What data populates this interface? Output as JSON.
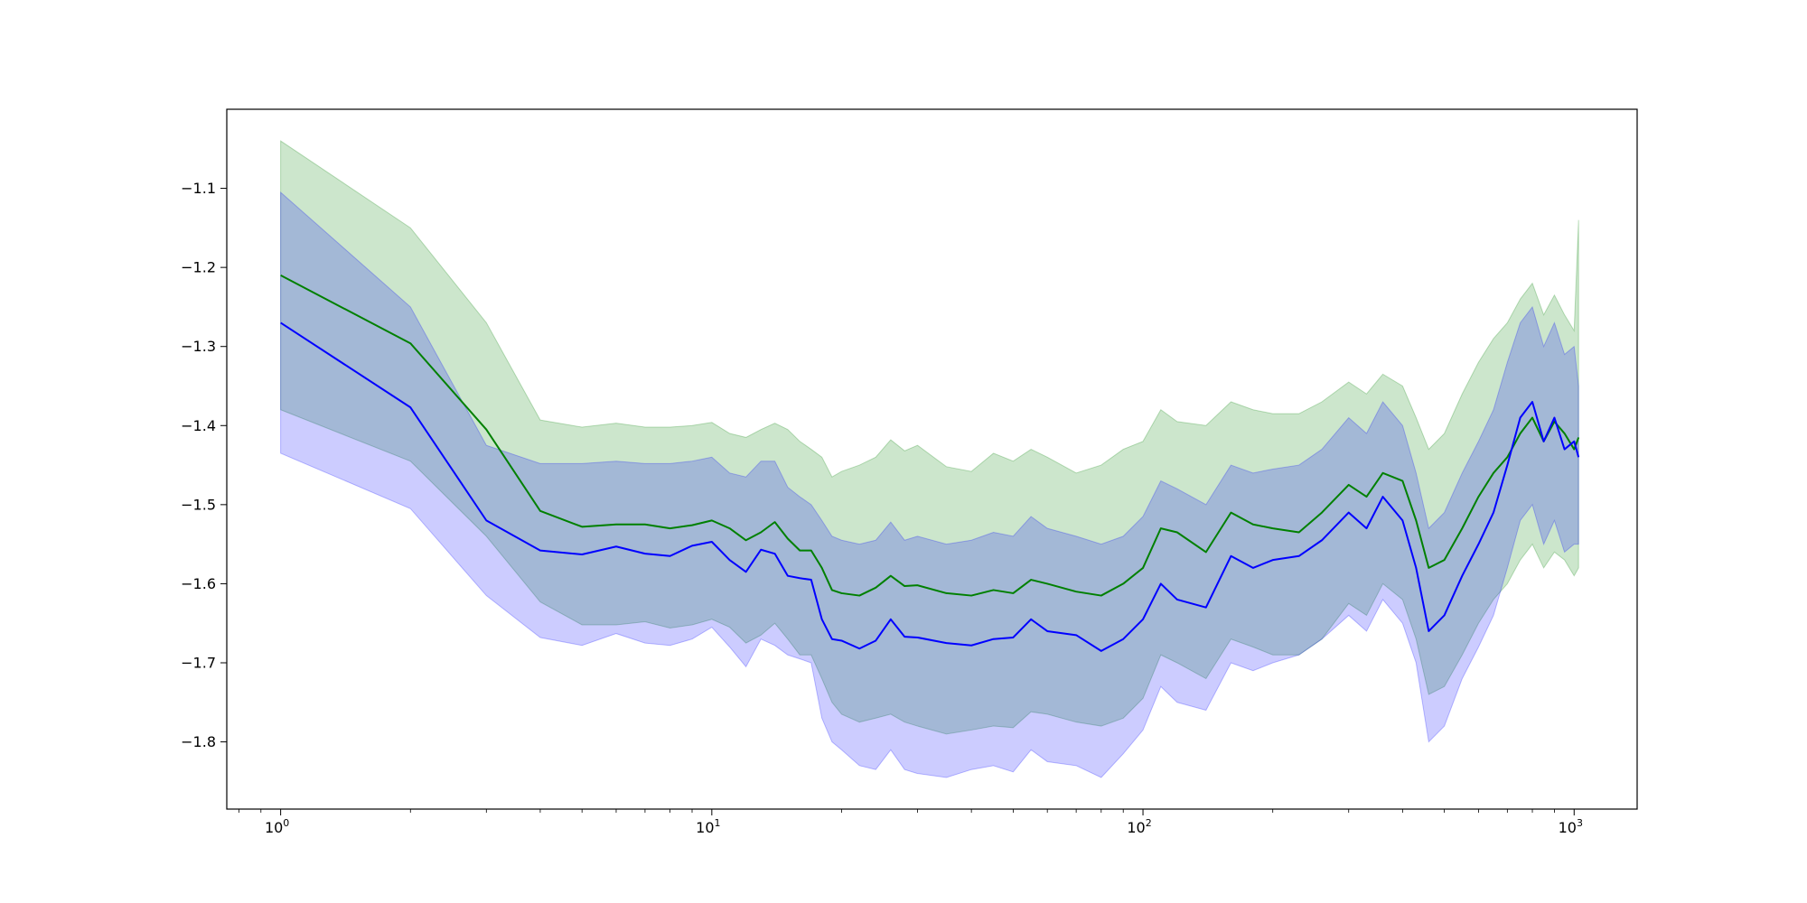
{
  "chart_data": {
    "type": "line",
    "title": "",
    "xlabel": "",
    "ylabel": "",
    "x_scale": "log",
    "xlim": [
      0.75,
      1400
    ],
    "ylim": [
      -1.885,
      -1.0
    ],
    "x_ticks": [
      {
        "value": 1,
        "base": "10",
        "exp": "0"
      },
      {
        "value": 10,
        "base": "10",
        "exp": "1"
      },
      {
        "value": 100,
        "base": "10",
        "exp": "2"
      },
      {
        "value": 1000,
        "base": "10",
        "exp": "3"
      }
    ],
    "y_ticks": [
      {
        "value": -1.1,
        "label": "−1.1"
      },
      {
        "value": -1.2,
        "label": "−1.2"
      },
      {
        "value": -1.3,
        "label": "−1.3"
      },
      {
        "value": -1.4,
        "label": "−1.4"
      },
      {
        "value": -1.5,
        "label": "−1.5"
      },
      {
        "value": -1.6,
        "label": "−1.6"
      },
      {
        "value": -1.7,
        "label": "−1.7"
      },
      {
        "value": -1.8,
        "label": "−1.8"
      }
    ],
    "grid": false,
    "legend": "none",
    "series": [
      {
        "color": "#008000",
        "band_color": "#008000",
        "band_opacity": 0.2,
        "x": [
          1,
          2,
          3,
          4,
          5,
          6,
          7,
          8,
          9,
          10,
          11,
          12,
          13,
          14,
          15,
          16,
          17,
          18,
          19,
          20,
          22,
          24,
          26,
          28,
          30,
          35,
          40,
          45,
          50,
          55,
          60,
          70,
          80,
          90,
          100,
          110,
          120,
          140,
          160,
          180,
          200,
          230,
          260,
          300,
          330,
          360,
          400,
          430,
          460,
          500,
          550,
          600,
          650,
          700,
          750,
          800,
          850,
          900,
          950,
          1000,
          1024
        ],
        "mean": [
          -1.21,
          -1.296,
          -1.405,
          -1.508,
          -1.528,
          -1.525,
          -1.525,
          -1.53,
          -1.526,
          -1.52,
          -1.53,
          -1.545,
          -1.535,
          -1.522,
          -1.543,
          -1.558,
          -1.558,
          -1.58,
          -1.608,
          -1.612,
          -1.615,
          -1.605,
          -1.59,
          -1.603,
          -1.602,
          -1.612,
          -1.615,
          -1.608,
          -1.612,
          -1.595,
          -1.6,
          -1.61,
          -1.615,
          -1.6,
          -1.58,
          -1.53,
          -1.535,
          -1.56,
          -1.51,
          -1.525,
          -1.53,
          -1.535,
          -1.51,
          -1.475,
          -1.49,
          -1.46,
          -1.47,
          -1.52,
          -1.58,
          -1.57,
          -1.53,
          -1.49,
          -1.46,
          -1.44,
          -1.41,
          -1.39,
          -1.42,
          -1.395,
          -1.41,
          -1.43,
          -1.415
        ],
        "upper": [
          -1.04,
          -1.15,
          -1.27,
          -1.393,
          -1.402,
          -1.397,
          -1.402,
          -1.402,
          -1.4,
          -1.396,
          -1.41,
          -1.415,
          -1.405,
          -1.397,
          -1.405,
          -1.42,
          -1.43,
          -1.44,
          -1.465,
          -1.458,
          -1.45,
          -1.44,
          -1.418,
          -1.432,
          -1.425,
          -1.452,
          -1.458,
          -1.435,
          -1.445,
          -1.43,
          -1.44,
          -1.46,
          -1.45,
          -1.43,
          -1.42,
          -1.38,
          -1.395,
          -1.4,
          -1.37,
          -1.38,
          -1.385,
          -1.385,
          -1.37,
          -1.345,
          -1.36,
          -1.335,
          -1.35,
          -1.39,
          -1.43,
          -1.41,
          -1.36,
          -1.32,
          -1.29,
          -1.27,
          -1.24,
          -1.22,
          -1.26,
          -1.235,
          -1.26,
          -1.28,
          -1.14
        ],
        "lower": [
          -1.38,
          -1.445,
          -1.54,
          -1.623,
          -1.652,
          -1.652,
          -1.648,
          -1.656,
          -1.652,
          -1.645,
          -1.655,
          -1.675,
          -1.665,
          -1.65,
          -1.67,
          -1.69,
          -1.69,
          -1.72,
          -1.75,
          -1.765,
          -1.775,
          -1.77,
          -1.765,
          -1.775,
          -1.78,
          -1.79,
          -1.785,
          -1.78,
          -1.782,
          -1.762,
          -1.765,
          -1.775,
          -1.78,
          -1.77,
          -1.745,
          -1.69,
          -1.7,
          -1.72,
          -1.67,
          -1.68,
          -1.69,
          -1.69,
          -1.67,
          -1.625,
          -1.64,
          -1.6,
          -1.62,
          -1.67,
          -1.74,
          -1.73,
          -1.69,
          -1.65,
          -1.62,
          -1.6,
          -1.57,
          -1.55,
          -1.58,
          -1.56,
          -1.57,
          -1.59,
          -1.58
        ]
      },
      {
        "color": "#0000ff",
        "band_color": "#0000ff",
        "band_opacity": 0.2,
        "x": [
          1,
          2,
          3,
          4,
          5,
          6,
          7,
          8,
          9,
          10,
          11,
          12,
          13,
          14,
          15,
          16,
          17,
          18,
          19,
          20,
          22,
          24,
          26,
          28,
          30,
          35,
          40,
          45,
          50,
          55,
          60,
          70,
          80,
          90,
          100,
          110,
          120,
          140,
          160,
          180,
          200,
          230,
          260,
          300,
          330,
          360,
          400,
          430,
          460,
          500,
          550,
          600,
          650,
          700,
          750,
          800,
          850,
          900,
          950,
          1000,
          1024
        ],
        "mean": [
          -1.27,
          -1.377,
          -1.52,
          -1.558,
          -1.563,
          -1.553,
          -1.562,
          -1.565,
          -1.552,
          -1.547,
          -1.57,
          -1.585,
          -1.557,
          -1.562,
          -1.59,
          -1.593,
          -1.595,
          -1.645,
          -1.67,
          -1.672,
          -1.682,
          -1.672,
          -1.645,
          -1.667,
          -1.668,
          -1.675,
          -1.678,
          -1.67,
          -1.668,
          -1.645,
          -1.66,
          -1.665,
          -1.685,
          -1.67,
          -1.645,
          -1.6,
          -1.62,
          -1.63,
          -1.565,
          -1.58,
          -1.57,
          -1.565,
          -1.545,
          -1.51,
          -1.53,
          -1.49,
          -1.52,
          -1.58,
          -1.66,
          -1.64,
          -1.59,
          -1.55,
          -1.51,
          -1.45,
          -1.39,
          -1.37,
          -1.42,
          -1.39,
          -1.43,
          -1.42,
          -1.44
        ],
        "upper": [
          -1.105,
          -1.25,
          -1.425,
          -1.448,
          -1.448,
          -1.445,
          -1.448,
          -1.448,
          -1.445,
          -1.44,
          -1.46,
          -1.465,
          -1.445,
          -1.445,
          -1.478,
          -1.49,
          -1.5,
          -1.52,
          -1.54,
          -1.545,
          -1.55,
          -1.545,
          -1.522,
          -1.545,
          -1.54,
          -1.55,
          -1.545,
          -1.535,
          -1.54,
          -1.515,
          -1.53,
          -1.54,
          -1.55,
          -1.54,
          -1.515,
          -1.47,
          -1.48,
          -1.5,
          -1.45,
          -1.46,
          -1.455,
          -1.45,
          -1.43,
          -1.39,
          -1.41,
          -1.37,
          -1.4,
          -1.46,
          -1.53,
          -1.51,
          -1.46,
          -1.42,
          -1.38,
          -1.32,
          -1.27,
          -1.25,
          -1.3,
          -1.27,
          -1.31,
          -1.3,
          -1.35
        ],
        "lower": [
          -1.435,
          -1.505,
          -1.615,
          -1.668,
          -1.678,
          -1.663,
          -1.675,
          -1.678,
          -1.67,
          -1.655,
          -1.68,
          -1.705,
          -1.67,
          -1.678,
          -1.69,
          -1.695,
          -1.7,
          -1.77,
          -1.8,
          -1.81,
          -1.83,
          -1.835,
          -1.81,
          -1.835,
          -1.84,
          -1.845,
          -1.835,
          -1.83,
          -1.838,
          -1.81,
          -1.825,
          -1.83,
          -1.845,
          -1.815,
          -1.785,
          -1.73,
          -1.75,
          -1.76,
          -1.7,
          -1.71,
          -1.7,
          -1.69,
          -1.67,
          -1.64,
          -1.66,
          -1.62,
          -1.65,
          -1.7,
          -1.8,
          -1.78,
          -1.72,
          -1.68,
          -1.64,
          -1.58,
          -1.52,
          -1.5,
          -1.55,
          -1.52,
          -1.56,
          -1.55,
          -1.55
        ]
      }
    ]
  }
}
